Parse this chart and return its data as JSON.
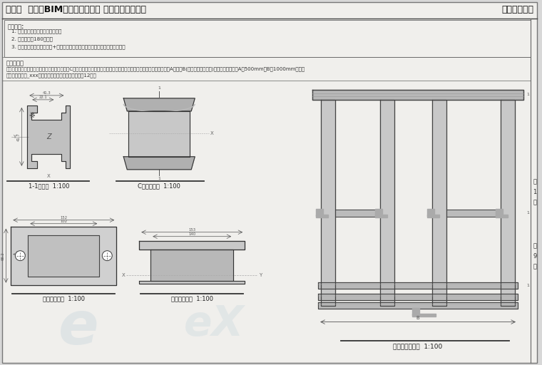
{
  "title_left": "第九期  「全国BIM技能等级考试」 二级（设备）试题",
  "title_right": "中国图学学会",
  "bg_color": "#d8d8d8",
  "paper_color": "#f0efec",
  "border_color": "#777777",
  "text_color": "#333333",
  "line_color": "#555555",
  "exam_req_title": "考试要求:",
  "exam_req_items": [
    "1. 考试方式：计算机操作，闭卷；",
    "2. 考试时间：180分钟；",
    "3. 新建文件夹，以准考证号+姓名命名，用于存放本次考试中生成的全部文件。"
  ],
  "problem_title": "试题部分：",
  "problem_line1": "一、右图为门型支架模型主视图，该支架由三个C型钢和两个钢底座组成。根据给定配件图纸，创建支架模型，并设定距离A与距离B(见门型支架侧视图)为可变参数，暂设A为500mm，B为1000mm，请将",
  "problem_line2": "结果以门型支架_xxx为文件名保存在考生文件夹中。（12分）",
  "label_11": "1-1断面图  1:100",
  "label_c": "C型钢正视图  1:100",
  "label_steel_bottom_front": "钢底座俯视图  1:100",
  "label_steel_bottom_side": "钢底座侧视图  1:100",
  "label_main": "门型支架主视图  1:100",
  "page_text": "第\n1\n页",
  "total_text": "共\n9\n页"
}
